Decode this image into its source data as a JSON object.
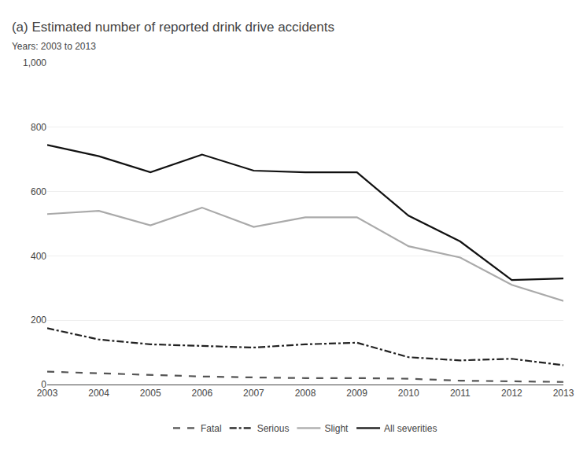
{
  "chart_data": {
    "type": "line",
    "title": "(a) Estimated number of reported drink drive accidents",
    "subtitle": "Years: 2003 to 2013",
    "x": [
      2003,
      2004,
      2005,
      2006,
      2007,
      2008,
      2009,
      2010,
      2011,
      2012,
      2013
    ],
    "series": [
      {
        "name": "Fatal",
        "color": "#555555",
        "line_style": "dash",
        "values": [
          40,
          35,
          30,
          25,
          22,
          20,
          20,
          18,
          12,
          10,
          8
        ]
      },
      {
        "name": "Serious",
        "color": "#222222",
        "line_style": "dashdot",
        "values": [
          175,
          140,
          125,
          120,
          115,
          125,
          130,
          85,
          75,
          80,
          60
        ]
      },
      {
        "name": "Slight",
        "color": "#aaaaaa",
        "line_style": "solid",
        "values": [
          530,
          540,
          495,
          550,
          490,
          520,
          520,
          430,
          395,
          310,
          260
        ]
      },
      {
        "name": "All severities",
        "color": "#111111",
        "line_style": "solid",
        "values": [
          745,
          710,
          660,
          715,
          665,
          660,
          660,
          525,
          445,
          325,
          330
        ]
      }
    ],
    "xlim": [
      2003,
      2013
    ],
    "xticks": [
      2003,
      2004,
      2005,
      2006,
      2007,
      2008,
      2009,
      2010,
      2011,
      2012,
      2013
    ],
    "ylim": [
      0,
      1000
    ],
    "yticks": [
      0,
      200,
      400,
      600,
      800,
      {
        "value": 1000,
        "label": "1,000"
      }
    ],
    "grid": true,
    "legend": "bottom"
  }
}
